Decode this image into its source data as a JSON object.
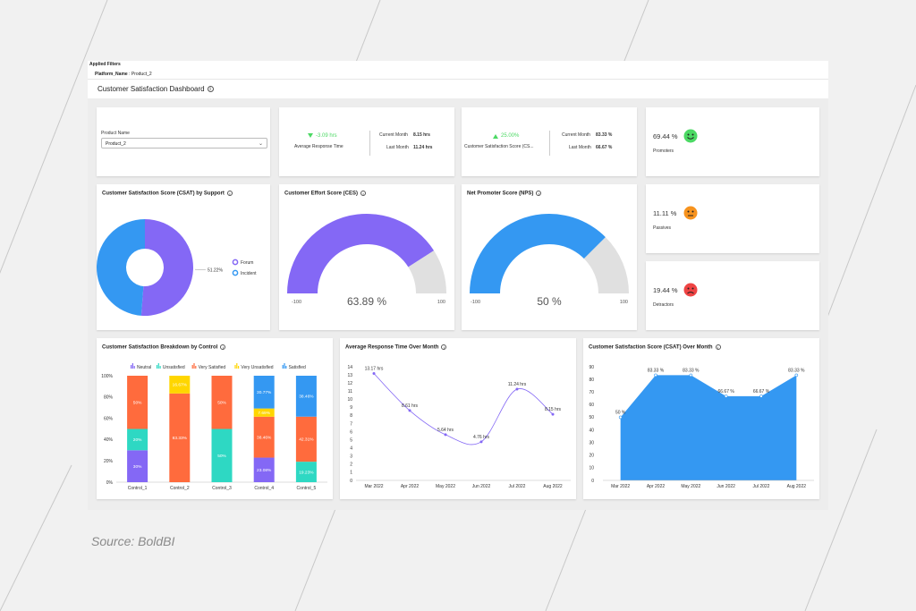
{
  "filters": {
    "heading": "Applied Filters",
    "key": "Platform_Name",
    "value": "Product_2"
  },
  "dashboard_title": "Customer Satisfaction Dashboard",
  "product": {
    "label": "Product Name",
    "selected": "Product_2"
  },
  "kpi_response": {
    "delta": "-3.09 hrs",
    "label": "Average Response Time",
    "current_label": "Current Month",
    "current": "8.15 hrs",
    "last_label": "Last Month",
    "last": "11.24 hrs"
  },
  "kpi_csat": {
    "delta": "25.00%",
    "label": "Customer Satisfaction Score (CS...",
    "current_label": "Current Month",
    "current": "83.33 %",
    "last_label": "Last Month",
    "last": "66.67 %"
  },
  "nps_cards": [
    {
      "value": "69.44 %",
      "label": "Promoters",
      "color": "#4cd964"
    },
    {
      "value": "11.11 %",
      "label": "Passives",
      "color": "#f7931e"
    },
    {
      "value": "19.44 %",
      "label": "Detractors",
      "color": "#ef4444"
    }
  ],
  "csat_support": {
    "title": "Customer Satisfaction Score (CSAT) by Support",
    "chart_data": {
      "type": "pie",
      "categories": [
        "Forum",
        "Incident"
      ],
      "values": [
        51.22,
        48.78
      ],
      "colors": [
        "#8468f5",
        "#3498f2"
      ],
      "data_labels": [
        "51.22%",
        "48.78%"
      ],
      "legend": "right"
    }
  },
  "ces": {
    "title": "Customer Effort Score (CES)",
    "chart_data": {
      "type": "gauge",
      "value": 63.89,
      "min": -100,
      "max": 100,
      "color": "#8468f5"
    },
    "value_label": "63.89 %",
    "min_label": "-100",
    "max_label": "100"
  },
  "nps": {
    "title": "Net Promoter Score (NPS)",
    "chart_data": {
      "type": "gauge",
      "value": 50,
      "min": -100,
      "max": 100,
      "color": "#3498f2"
    },
    "value_label": "50 %",
    "min_label": "-100",
    "max_label": "100"
  },
  "breakdown": {
    "title": "Customer Satisfaction Breakdown by Control",
    "chart_data": {
      "type": "bar",
      "stacked": true,
      "categories": [
        "Control_1",
        "Control_2",
        "Control_3",
        "Control_4",
        "Control_5"
      ],
      "series": [
        {
          "name": "Neutral",
          "color": "#8468f5",
          "values": [
            30,
            0,
            0,
            23.08,
            0
          ],
          "labels": [
            "30%",
            "",
            "",
            "23.08%",
            ""
          ]
        },
        {
          "name": "Unsatisfied",
          "color": "#2ed8c3",
          "values": [
            20,
            0,
            50,
            0,
            19.23
          ],
          "labels": [
            "20%",
            "",
            "50%",
            "",
            "19.23%"
          ]
        },
        {
          "name": "Very Satisfied",
          "color": "#ff6b3d",
          "values": [
            50,
            83.33,
            50,
            38.46,
            42.31
          ],
          "labels": [
            "50%",
            "83.33%",
            "50%",
            "38.46%",
            "42.31%"
          ]
        },
        {
          "name": "Very Unsatisfied",
          "color": "#ffd600",
          "values": [
            0,
            16.67,
            0,
            7.69,
            0
          ],
          "labels": [
            "",
            "16.67%",
            "",
            "7.69%",
            ""
          ]
        },
        {
          "name": "Satisfied",
          "color": "#3498f2",
          "values": [
            0,
            0,
            0,
            30.77,
            38.46
          ],
          "labels": [
            "",
            "",
            "",
            "30.77%",
            "38.46%"
          ]
        }
      ],
      "yticks": [
        "0%",
        "20%",
        "40%",
        "60%",
        "80%",
        "100%"
      ],
      "legend": "top"
    }
  },
  "avg_response": {
    "title": "Average Response Time Over Month",
    "chart_data": {
      "type": "line",
      "categories": [
        "Mar 2022",
        "Apr 2022",
        "May 2022",
        "Jun 2022",
        "Jul 2022",
        "Aug 2022"
      ],
      "values": [
        13.17,
        8.61,
        5.64,
        4.76,
        11.24,
        8.15
      ],
      "labels": [
        "13.17 hrs",
        "8.61 hrs",
        "5.64 hrs",
        "4.76 hrs",
        "11.24 hrs",
        "8.15 hrs"
      ],
      "ylim": [
        0,
        14
      ],
      "yticks": [
        "0",
        "1",
        "2",
        "3",
        "4",
        "5",
        "6",
        "7",
        "8",
        "9",
        "10",
        "11",
        "12",
        "13",
        "14"
      ],
      "color": "#8468f5"
    }
  },
  "csat_month": {
    "title": "Customer Satisfaction Score (CSAT) Over Month",
    "chart_data": {
      "type": "area",
      "categories": [
        "Mar 2022",
        "Apr 2022",
        "May 2022",
        "Jun 2022",
        "Jul 2022",
        "Aug 2022"
      ],
      "values": [
        50,
        83.33,
        83.33,
        66.67,
        66.67,
        83.33
      ],
      "labels": [
        "50 %",
        "83.33 %",
        "83.33 %",
        "66.67 %",
        "66.67 %",
        "83.33 %"
      ],
      "ylim": [
        0,
        90
      ],
      "yticks": [
        "0",
        "10",
        "20",
        "30",
        "40",
        "50",
        "60",
        "70",
        "80",
        "90"
      ],
      "color": "#3498f2"
    }
  },
  "source": "Source: BoldBI"
}
